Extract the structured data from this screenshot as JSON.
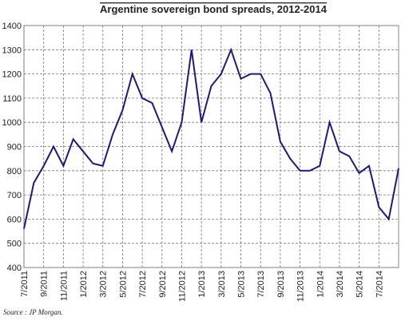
{
  "chart_data": {
    "type": "line",
    "title": "Argentine sovereign bond spreads, 2012-2014",
    "source": "Source : JP Morgan.",
    "categories": [
      "7/2011",
      null,
      "9/2011",
      null,
      "11/2011",
      null,
      "1/2012",
      null,
      "3/2012",
      null,
      "5/2012",
      null,
      "7/2012",
      null,
      "9/2012",
      null,
      "11/2012",
      null,
      "1/2013",
      null,
      "3/2013",
      null,
      "5/2013",
      null,
      "7/2013",
      null,
      "9/2013",
      null,
      "11/2013",
      null,
      "1/2014",
      null,
      "3/2014",
      null,
      "5/2014",
      null,
      "7/2014",
      null,
      null
    ],
    "series": [
      {
        "name": "Spread",
        "color": "#1a1a80",
        "values": [
          560,
          750,
          820,
          900,
          820,
          930,
          880,
          830,
          820,
          950,
          1050,
          1200,
          1100,
          1080,
          980,
          880,
          1000,
          1300,
          1000,
          1150,
          1200,
          1300,
          1180,
          1200,
          1200,
          1120,
          920,
          850,
          800,
          800,
          820,
          1000,
          880,
          860,
          790,
          820,
          650,
          600,
          810
        ]
      }
    ],
    "ylim": [
      400,
      1400
    ],
    "yticks": [
      400,
      500,
      600,
      700,
      800,
      900,
      1000,
      1100,
      1200,
      1300,
      1400
    ],
    "grid": true
  }
}
